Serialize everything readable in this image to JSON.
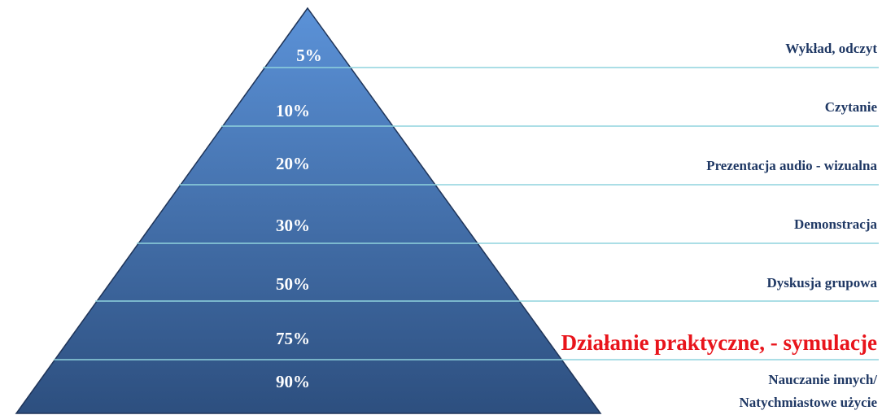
{
  "colors": {
    "pyramid_top": "#5b92d8",
    "pyramid_bottom": "#2d4f7f",
    "pyramid_outline": "#1f3458",
    "divider": "#8fd3dd",
    "label_text": "#1f3864",
    "highlight_text": "#e8141b",
    "percent_text": "#ffffff"
  },
  "levels": [
    {
      "percent": "5%",
      "label": "Wykład, odczyt"
    },
    {
      "percent": "10%",
      "label": "Czytanie"
    },
    {
      "percent": "20%",
      "label": "Prezentacja audio - wizualna"
    },
    {
      "percent": "30%",
      "label": "Demonstracja"
    },
    {
      "percent": "50%",
      "label": "Dyskusja grupowa"
    },
    {
      "percent": "75%",
      "label": "Działanie praktyczne, - symulacje"
    },
    {
      "percent": "90%",
      "label_line1": "Nauczanie innych/",
      "label_line2": "Natychmiastowe użycie"
    }
  ]
}
